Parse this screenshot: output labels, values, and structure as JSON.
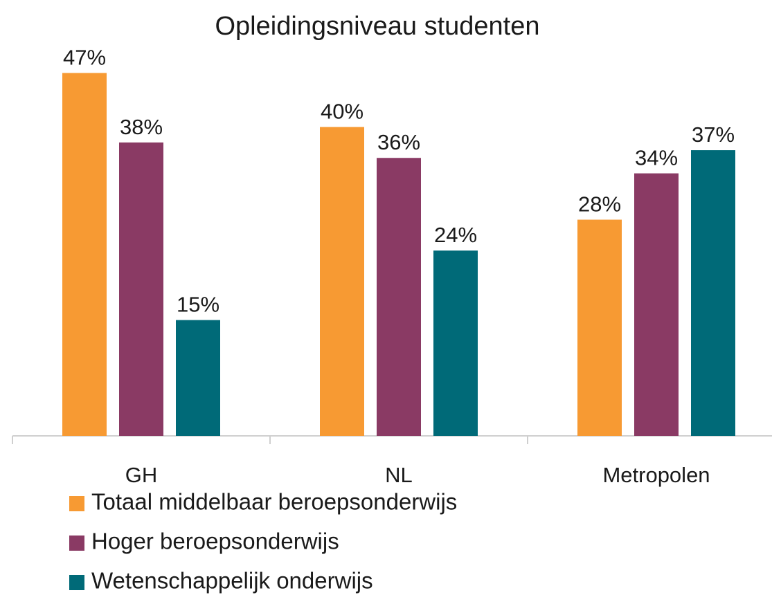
{
  "chart_data": {
    "type": "bar",
    "title": "Opleidingsniveau studenten",
    "categories": [
      "GH",
      "NL",
      "Metropolen"
    ],
    "series": [
      {
        "name": "Totaal middelbaar beroepsonderwijs",
        "color": "#f79a33",
        "values": [
          47,
          40,
          28
        ],
        "value_labels": [
          "47%",
          "40%",
          "28%"
        ]
      },
      {
        "name": "Hoger beroepsonderwijs",
        "color": "#8a3a64",
        "values": [
          38,
          36,
          34
        ],
        "value_labels": [
          "38%",
          "36%",
          "34%"
        ]
      },
      {
        "name": "Wetenschappelijk onderwijs",
        "color": "#006a78",
        "values": [
          15,
          24,
          37
        ],
        "value_labels": [
          "15%",
          "24%",
          "37%"
        ]
      }
    ],
    "ylim": [
      0,
      50
    ],
    "legend": "bottom"
  }
}
